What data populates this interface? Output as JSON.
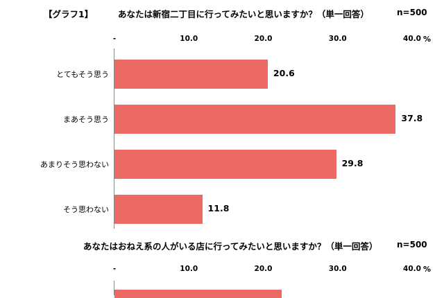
{
  "graph_tag": "【グラフ1】",
  "chart_data": [
    {
      "type": "bar",
      "orientation": "horizontal",
      "title": "あなたは新宿二丁目に行ってみたいと思いますか？（単一回答）",
      "n_label": "n=500",
      "categories": [
        "とてもそう思う",
        "まあそう思う",
        "あまりそう思わない",
        "そう思わない"
      ],
      "values": [
        20.6,
        37.8,
        29.8,
        11.8
      ],
      "xlim": [
        0,
        40
      ],
      "ticks": [
        "-",
        "10.0",
        "20.0",
        "30.0",
        "40.0"
      ],
      "unit": "%",
      "bar_color": "#eb6863"
    },
    {
      "type": "bar",
      "orientation": "horizontal",
      "title": "あなたはおねえ系の人がいる店に行ってみたいと思いますか？（単一回答）",
      "n_label": "n=500",
      "categories": [],
      "values": [],
      "xlim": [
        0,
        40
      ],
      "ticks": [
        "-",
        "10.0",
        "20.0",
        "30.0",
        "40.0"
      ],
      "unit": "%",
      "bar_color": "#eb6863"
    }
  ]
}
